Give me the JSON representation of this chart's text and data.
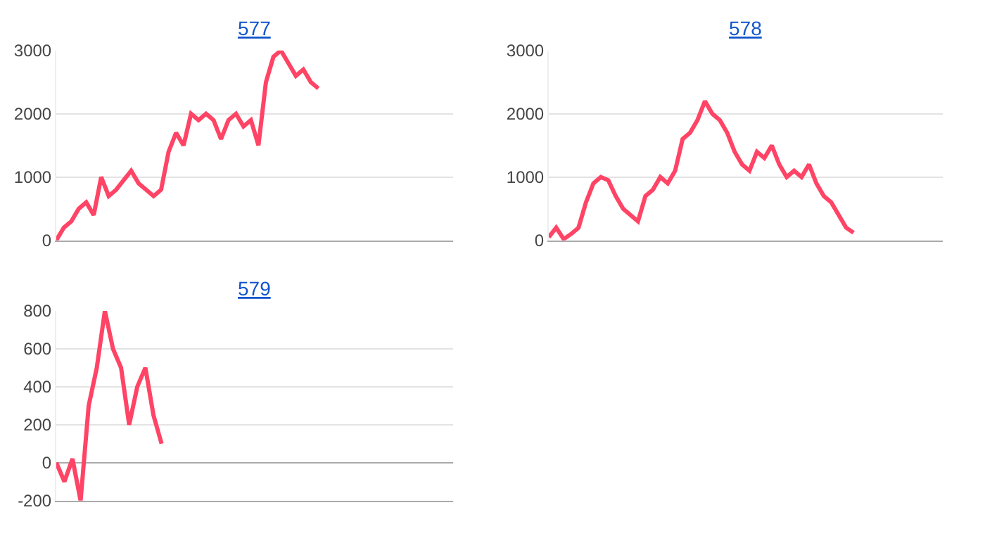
{
  "chart_data": [
    {
      "type": "line",
      "title": "577",
      "categories": [
        null,
        null,
        null,
        null,
        null,
        null,
        null,
        null,
        null,
        null,
        null,
        null,
        null,
        null,
        null,
        null,
        null,
        null,
        null,
        null,
        null,
        null,
        null,
        null,
        null,
        null,
        null,
        null,
        null,
        null,
        null,
        null,
        null,
        null,
        null,
        null,
        null,
        null,
        null,
        null,
        null,
        null,
        null,
        null,
        null,
        null,
        null,
        null,
        null,
        null,
        null,
        null,
        null,
        null
      ],
      "series": [
        {
          "color": "#ff4466",
          "values": [
            0,
            200,
            300,
            500,
            600,
            400,
            1000,
            700,
            800,
            950,
            1100,
            900,
            800,
            700,
            800,
            1400,
            1700,
            1500,
            2000,
            1900,
            2000,
            1900,
            1600,
            1900,
            2000,
            1800,
            1900,
            1500,
            2500,
            2900,
            3000,
            2800,
            2600,
            2700,
            2500,
            2400,
            null,
            null,
            null,
            null,
            null,
            null,
            null,
            null,
            null,
            null,
            null,
            null,
            null,
            null,
            null,
            null,
            null,
            null
          ]
        }
      ],
      "ylim": [
        0,
        3000
      ],
      "yticks": [
        0,
        1000,
        2000,
        3000
      ],
      "grid": "y",
      "tick_labels": "y"
    },
    {
      "type": "line",
      "title": "578",
      "categories": [
        null,
        null,
        null,
        null,
        null,
        null,
        null,
        null,
        null,
        null,
        null,
        null,
        null,
        null,
        null,
        null,
        null,
        null,
        null,
        null,
        null,
        null,
        null,
        null,
        null,
        null,
        null,
        null,
        null,
        null,
        null,
        null,
        null,
        null,
        null,
        null,
        null,
        null,
        null,
        null,
        null,
        null,
        null,
        null,
        null,
        null,
        null,
        null,
        null,
        null,
        null,
        null,
        null,
        null
      ],
      "series": [
        {
          "color": "#ff4466",
          "values": [
            50,
            200,
            20,
            100,
            200,
            600,
            900,
            1000,
            950,
            700,
            500,
            400,
            300,
            700,
            800,
            1000,
            900,
            1100,
            1600,
            1700,
            1900,
            2200,
            2000,
            1900,
            1700,
            1400,
            1200,
            1100,
            1400,
            1300,
            1500,
            1200,
            1000,
            1100,
            1000,
            1200,
            900,
            700,
            600,
            400,
            200,
            120,
            null,
            null,
            null,
            null,
            null,
            null,
            null,
            null,
            null,
            null,
            null,
            null
          ]
        }
      ],
      "ylim": [
        0,
        3000
      ],
      "yticks": [
        0,
        1000,
        2000,
        3000
      ],
      "grid": "y",
      "tick_labels": "y"
    },
    {
      "type": "line",
      "title": "579",
      "categories": [
        null,
        null,
        null,
        null,
        null,
        null,
        null,
        null,
        null,
        null,
        null,
        null,
        null,
        null,
        null,
        null,
        null,
        null,
        null,
        null,
        null,
        null,
        null,
        null,
        null,
        null,
        null,
        null,
        null,
        null,
        null,
        null,
        null,
        null,
        null,
        null,
        null,
        null,
        null,
        null,
        null,
        null,
        null,
        null,
        null,
        null,
        null,
        null,
        null,
        null
      ],
      "series": [
        {
          "color": "#ff4466",
          "values": [
            0,
            -100,
            20,
            -200,
            300,
            500,
            800,
            600,
            500,
            200,
            400,
            500,
            250,
            100,
            null,
            null,
            null,
            null,
            null,
            null,
            null,
            null,
            null,
            null,
            null,
            null,
            null,
            null,
            null,
            null,
            null,
            null,
            null,
            null,
            null,
            null,
            null,
            null,
            null,
            null,
            null,
            null,
            null,
            null,
            null,
            null,
            null,
            null,
            null,
            null
          ]
        }
      ],
      "ylim": [
        -200,
        800
      ],
      "yticks": [
        -200,
        0,
        200,
        400,
        600,
        800
      ],
      "grid": "y",
      "tick_labels": "y"
    }
  ]
}
